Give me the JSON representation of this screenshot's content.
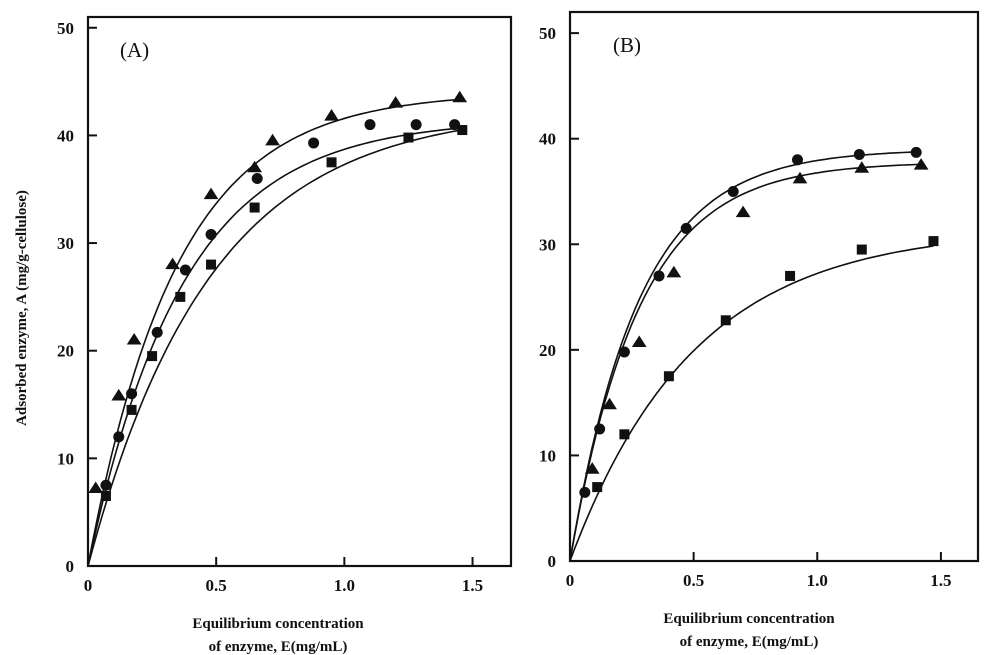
{
  "figure": {
    "ylabel": "Adsorbed enzyme, A (mg/g-cellulose)"
  },
  "chart_data": [
    {
      "type": "scatter",
      "panel_label": "(A)",
      "xlabel": [
        "Equilibrium concentration",
        "of enzyme, E(mg/mL)"
      ],
      "ylabel": "Adsorbed enzyme, A (mg/g-cellulose)",
      "xlim": [
        0,
        1.65
      ],
      "ylim": [
        0,
        51
      ],
      "xticks": [
        0,
        0.5,
        1.0,
        1.5
      ],
      "xtick_labels": [
        "0",
        "0.5",
        "1.0",
        "1.5"
      ],
      "yticks": [
        0,
        10,
        20,
        30,
        40,
        50
      ],
      "ytick_labels": [
        "0",
        "10",
        "20",
        "30",
        "40",
        "50"
      ],
      "grid": false,
      "series": [
        {
          "marker": "triangle",
          "x": [
            0.03,
            0.12,
            0.18,
            0.33,
            0.48,
            0.65,
            0.72,
            0.95,
            1.2,
            1.45
          ],
          "y": [
            7.2,
            15.8,
            21.0,
            28.0,
            34.5,
            37.0,
            39.5,
            41.8,
            43.0,
            43.5
          ],
          "fit": {
            "a": 44.0,
            "k": 2.9
          }
        },
        {
          "marker": "circle",
          "x": [
            0.07,
            0.12,
            0.17,
            0.27,
            0.38,
            0.48,
            0.66,
            0.88,
            1.1,
            1.28,
            1.43
          ],
          "y": [
            7.5,
            12.0,
            16.0,
            21.7,
            27.5,
            30.8,
            36.0,
            39.3,
            41.0,
            41.0,
            41.0
          ],
          "fit": {
            "a": 41.5,
            "k": 2.7
          }
        },
        {
          "marker": "square",
          "x": [
            0.07,
            0.17,
            0.25,
            0.36,
            0.48,
            0.65,
            0.95,
            1.25,
            1.46
          ],
          "y": [
            6.5,
            14.5,
            19.5,
            25.0,
            28.0,
            33.3,
            37.5,
            39.8,
            40.5
          ],
          "fit": {
            "a": 42.5,
            "k": 2.1
          }
        }
      ]
    },
    {
      "type": "scatter",
      "panel_label": "(B)",
      "xlabel": [
        "Equilibrium concentration",
        "of enzyme, E(mg/mL)"
      ],
      "ylabel": "",
      "xlim": [
        0,
        1.65
      ],
      "ylim": [
        0,
        52
      ],
      "xticks": [
        0,
        0.5,
        1.0,
        1.5
      ],
      "xtick_labels": [
        "0",
        "0.5",
        "1.0",
        "1.5"
      ],
      "yticks": [
        0,
        10,
        20,
        30,
        40,
        50
      ],
      "ytick_labels": [
        "0",
        "10",
        "20",
        "30",
        "40",
        "50"
      ],
      "grid": false,
      "series": [
        {
          "marker": "circle",
          "x": [
            0.06,
            0.12,
            0.22,
            0.36,
            0.47,
            0.66,
            0.92,
            1.17,
            1.4
          ],
          "y": [
            6.5,
            12.5,
            19.8,
            27.0,
            31.5,
            35.0,
            38.0,
            38.5,
            38.7
          ],
          "fit": {
            "a": 39.0,
            "k": 3.6
          }
        },
        {
          "marker": "triangle",
          "x": [
            0.09,
            0.16,
            0.28,
            0.42,
            0.7,
            0.93,
            1.18,
            1.42
          ],
          "y": [
            8.7,
            14.8,
            20.7,
            27.3,
            33.0,
            36.2,
            37.2,
            37.5
          ],
          "fit": {
            "a": 37.8,
            "k": 3.6
          }
        },
        {
          "marker": "square",
          "x": [
            0.11,
            0.22,
            0.4,
            0.63,
            0.89,
            1.18,
            1.47
          ],
          "y": [
            7.0,
            12.0,
            17.5,
            22.8,
            27.0,
            29.5,
            30.3
          ],
          "fit": {
            "a": 31.5,
            "k": 2.0
          }
        }
      ]
    }
  ]
}
